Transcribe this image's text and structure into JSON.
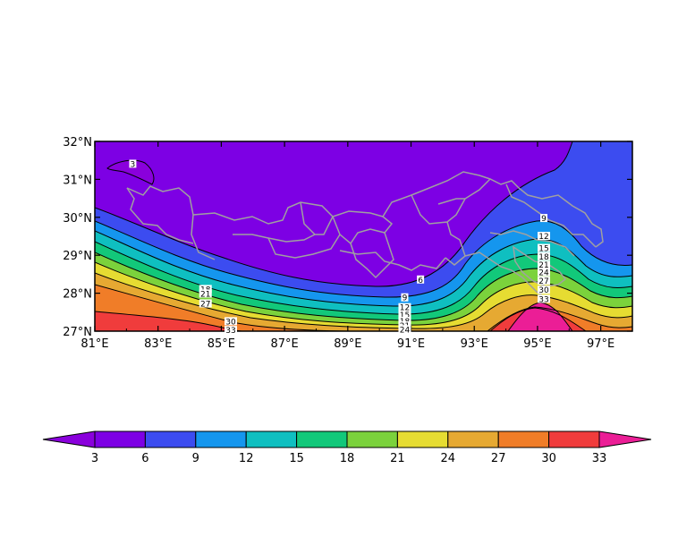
{
  "chart_data": {
    "type": "contour",
    "title": "",
    "xlabel": "",
    "ylabel": "",
    "xlim": [
      81,
      98
    ],
    "ylim": [
      27,
      32
    ],
    "x_ticks": [
      {
        "value": 81,
        "label": "81°E"
      },
      {
        "value": 83,
        "label": "83°E"
      },
      {
        "value": 85,
        "label": "85°E"
      },
      {
        "value": 87,
        "label": "87°E"
      },
      {
        "value": 89,
        "label": "89°E"
      },
      {
        "value": 91,
        "label": "91°E"
      },
      {
        "value": 93,
        "label": "93°E"
      },
      {
        "value": 95,
        "label": "95°E"
      },
      {
        "value": 97,
        "label": "97°E"
      }
    ],
    "y_ticks": [
      {
        "value": 27,
        "label": "27°N"
      },
      {
        "value": 28,
        "label": "28°N"
      },
      {
        "value": 29,
        "label": "29°N"
      },
      {
        "value": 30,
        "label": "30°N"
      },
      {
        "value": 31,
        "label": "31°N"
      },
      {
        "value": 32,
        "label": "32°N"
      }
    ],
    "contour_levels": [
      3,
      6,
      9,
      12,
      15,
      18,
      21,
      24,
      27,
      30,
      33
    ],
    "colorbar": {
      "labels": [
        "3",
        "6",
        "9",
        "12",
        "15",
        "18",
        "21",
        "24",
        "27",
        "30",
        "33"
      ],
      "colors": [
        "#8a00dc",
        "#7d00e4",
        "#3c4cf0",
        "#1596ee",
        "#0fbfc0",
        "#12c87a",
        "#7bd23c",
        "#e6dc32",
        "#e6a932",
        "#f07d28",
        "#f03c3c",
        "#eb1e96"
      ],
      "extend": "both"
    },
    "contour_labels": [
      {
        "text": "3",
        "lon": 82.2,
        "lat": 31.4
      },
      {
        "text": "6",
        "lon": 91.3,
        "lat": 28.35
      },
      {
        "text": "9",
        "lon": 90.8,
        "lat": 27.88
      },
      {
        "text": "12",
        "lon": 90.8,
        "lat": 27.62
      },
      {
        "text": "15",
        "lon": 90.8,
        "lat": 27.42
      },
      {
        "text": "18",
        "lon": 90.8,
        "lat": 27.26
      },
      {
        "text": "21",
        "lon": 90.8,
        "lat": 27.14
      },
      {
        "text": "24",
        "lon": 90.8,
        "lat": 27.04
      },
      {
        "text": "18",
        "lon": 84.5,
        "lat": 28.1
      },
      {
        "text": "21",
        "lon": 84.5,
        "lat": 27.98
      },
      {
        "text": "27",
        "lon": 84.5,
        "lat": 27.72
      },
      {
        "text": "30",
        "lon": 85.3,
        "lat": 27.25
      },
      {
        "text": "33",
        "lon": 85.3,
        "lat": 27.02
      },
      {
        "text": "9",
        "lon": 95.2,
        "lat": 29.97
      },
      {
        "text": "12",
        "lon": 95.2,
        "lat": 29.5
      },
      {
        "text": "15",
        "lon": 95.2,
        "lat": 29.18
      },
      {
        "text": "18",
        "lon": 95.2,
        "lat": 28.96
      },
      {
        "text": "21",
        "lon": 95.2,
        "lat": 28.74
      },
      {
        "text": "24",
        "lon": 95.2,
        "lat": 28.54
      },
      {
        "text": "27",
        "lon": 95.2,
        "lat": 28.32
      },
      {
        "text": "30",
        "lon": 95.2,
        "lat": 28.08
      },
      {
        "text": "33",
        "lon": 95.2,
        "lat": 27.84
      }
    ]
  }
}
